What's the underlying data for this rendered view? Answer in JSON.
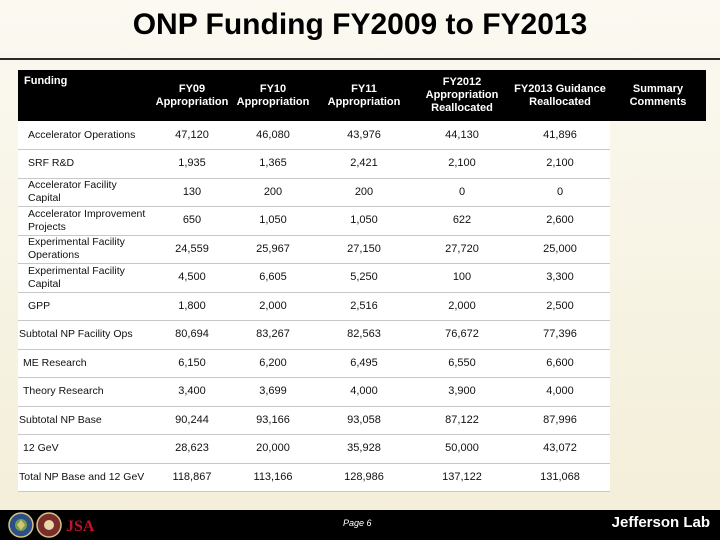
{
  "page": {
    "title": "ONP Funding FY2009 to FY2013"
  },
  "table": {
    "headers": [
      "Funding",
      "FY09 Appropriation",
      "FY10 Appropriation",
      "FY11 Appropriation",
      "FY2012 Appropriation Reallocated",
      "FY2013 Guidance Reallocated",
      "Summary Comments"
    ],
    "rows": [
      {
        "label": "Accelerator Operations",
        "values": [
          "47,120",
          "46,080",
          "43,976",
          "44,130",
          "41,896"
        ]
      },
      {
        "label": "SRF R&D",
        "values": [
          "1,935",
          "1,365",
          "2,421",
          "2,100",
          "2,100"
        ]
      },
      {
        "label": "Accelerator Facility Capital",
        "values": [
          "130",
          "200",
          "200",
          "0",
          "0"
        ]
      },
      {
        "label": "Accelerator Improvement Projects",
        "values": [
          "650",
          "1,050",
          "1,050",
          "622",
          "2,600"
        ]
      },
      {
        "label": "Experimental Facility Operations",
        "values": [
          "24,559",
          "25,967",
          "27,150",
          "27,720",
          "25,000"
        ]
      },
      {
        "label": "Experimental Facility Capital",
        "values": [
          "4,500",
          "6,605",
          "5,250",
          "100",
          "3,300"
        ]
      },
      {
        "label": "GPP",
        "values": [
          "1,800",
          "2,000",
          "2,516",
          "2,000",
          "2,500"
        ]
      },
      {
        "label": "Subtotal NP Facility Ops",
        "values": [
          "80,694",
          "83,267",
          "82,563",
          "76,672",
          "77,396"
        ]
      },
      {
        "label": "ME Research",
        "values": [
          "6,150",
          "6,200",
          "6,495",
          "6,550",
          "6,600"
        ]
      },
      {
        "label": "Theory Research",
        "values": [
          "3,400",
          "3,699",
          "4,000",
          "3,900",
          "4,000"
        ]
      },
      {
        "label": "Subtotal NP Base",
        "values": [
          "90,244",
          "93,166",
          "93,058",
          "87,122",
          "87,996"
        ]
      },
      {
        "label": "12 GeV",
        "values": [
          "28,623",
          "20,000",
          "35,928",
          "50,000",
          "43,072"
        ]
      },
      {
        "label": "Total NP Base and 12 GeV",
        "values": [
          "118,867",
          "113,166",
          "128,986",
          "137,122",
          "131,068"
        ]
      }
    ]
  },
  "footer": {
    "page_number": "Page 6",
    "lab_name": "Jefferson Lab",
    "logo_text": "JSA"
  }
}
